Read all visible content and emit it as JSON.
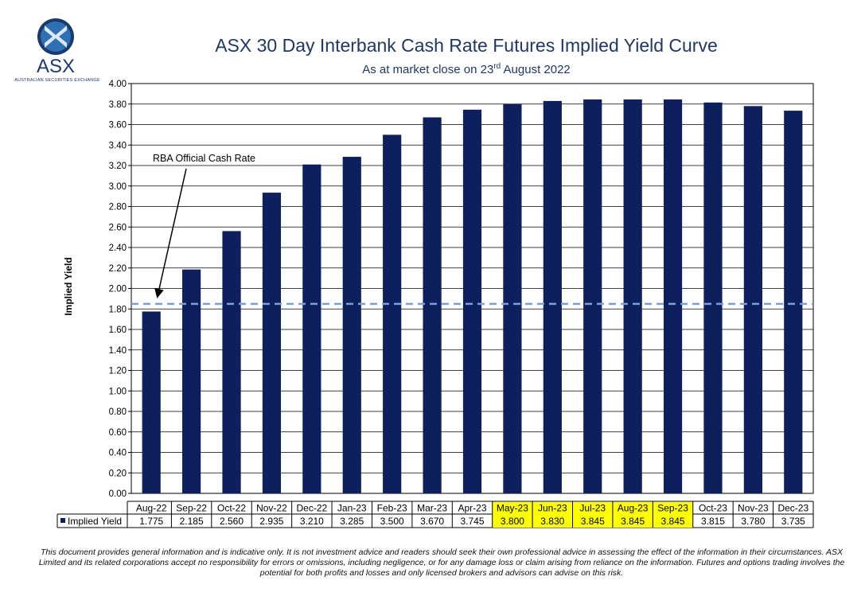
{
  "header": {
    "logo_text": "ASX",
    "logo_subtext": "AUSTRALIAN SECURITIES EXCHANGE",
    "title": "ASX 30 Day Interbank Cash Rate Futures Implied Yield Curve",
    "subtitle_pre": "As at market close on 23",
    "subtitle_sup": "rd",
    "subtitle_post": " August 2022"
  },
  "chart_data": {
    "type": "bar",
    "title": "ASX 30 Day Interbank Cash Rate Futures Implied Yield Curve",
    "subtitle": "As at market close on 23rd August 2022",
    "ylabel": "Implied Yield",
    "xlabel": "",
    "ylim": [
      0,
      4.0
    ],
    "ytick_step": 0.2,
    "yticks": [
      "0.00",
      "0.20",
      "0.40",
      "0.60",
      "0.80",
      "1.00",
      "1.20",
      "1.40",
      "1.60",
      "1.80",
      "2.00",
      "2.20",
      "2.40",
      "2.60",
      "2.80",
      "3.00",
      "3.20",
      "3.40",
      "3.60",
      "3.80",
      "4.00"
    ],
    "grid": true,
    "categories": [
      "Aug-22",
      "Sep-22",
      "Oct-22",
      "Nov-22",
      "Dec-22",
      "Jan-23",
      "Feb-23",
      "Mar-23",
      "Apr-23",
      "May-23",
      "Jun-23",
      "Jul-23",
      "Aug-23",
      "Sep-23",
      "Oct-23",
      "Nov-23",
      "Dec-23"
    ],
    "series": [
      {
        "name": "Implied Yield",
        "values": [
          1.775,
          2.185,
          2.56,
          2.935,
          3.21,
          3.285,
          3.5,
          3.67,
          3.745,
          3.8,
          3.83,
          3.845,
          3.845,
          3.845,
          3.815,
          3.78,
          3.735
        ],
        "value_labels": [
          "1.775",
          "2.185",
          "2.560",
          "2.935",
          "3.210",
          "3.285",
          "3.500",
          "3.670",
          "3.745",
          "3.800",
          "3.830",
          "3.845",
          "3.845",
          "3.845",
          "3.815",
          "3.780",
          "3.735"
        ],
        "color": "#0d1f5c"
      }
    ],
    "highlighted_categories": [
      "May-23",
      "Jun-23",
      "Jul-23",
      "Aug-23",
      "Sep-23"
    ],
    "highlight_color": "#ffff00",
    "reference_line": {
      "value": 1.85,
      "color": "#7b9ee0"
    },
    "annotation": {
      "text": "RBA Official Cash Rate"
    },
    "legend_placement": "data-table"
  },
  "footer": {
    "disclaimer": "This document provides general information and is indicative only. It is not investment advice and readers should seek their own professional advice in assessing the effect of the information in their circumstances. ASX Limited and its related corporations accept no responsibility for errors or omissions, including negligence, or for any damage loss or claim arising from reliance on the information. Futures and options trading involves the potential for both profits and losses and only licensed brokers and advisors can advise on this risk."
  }
}
